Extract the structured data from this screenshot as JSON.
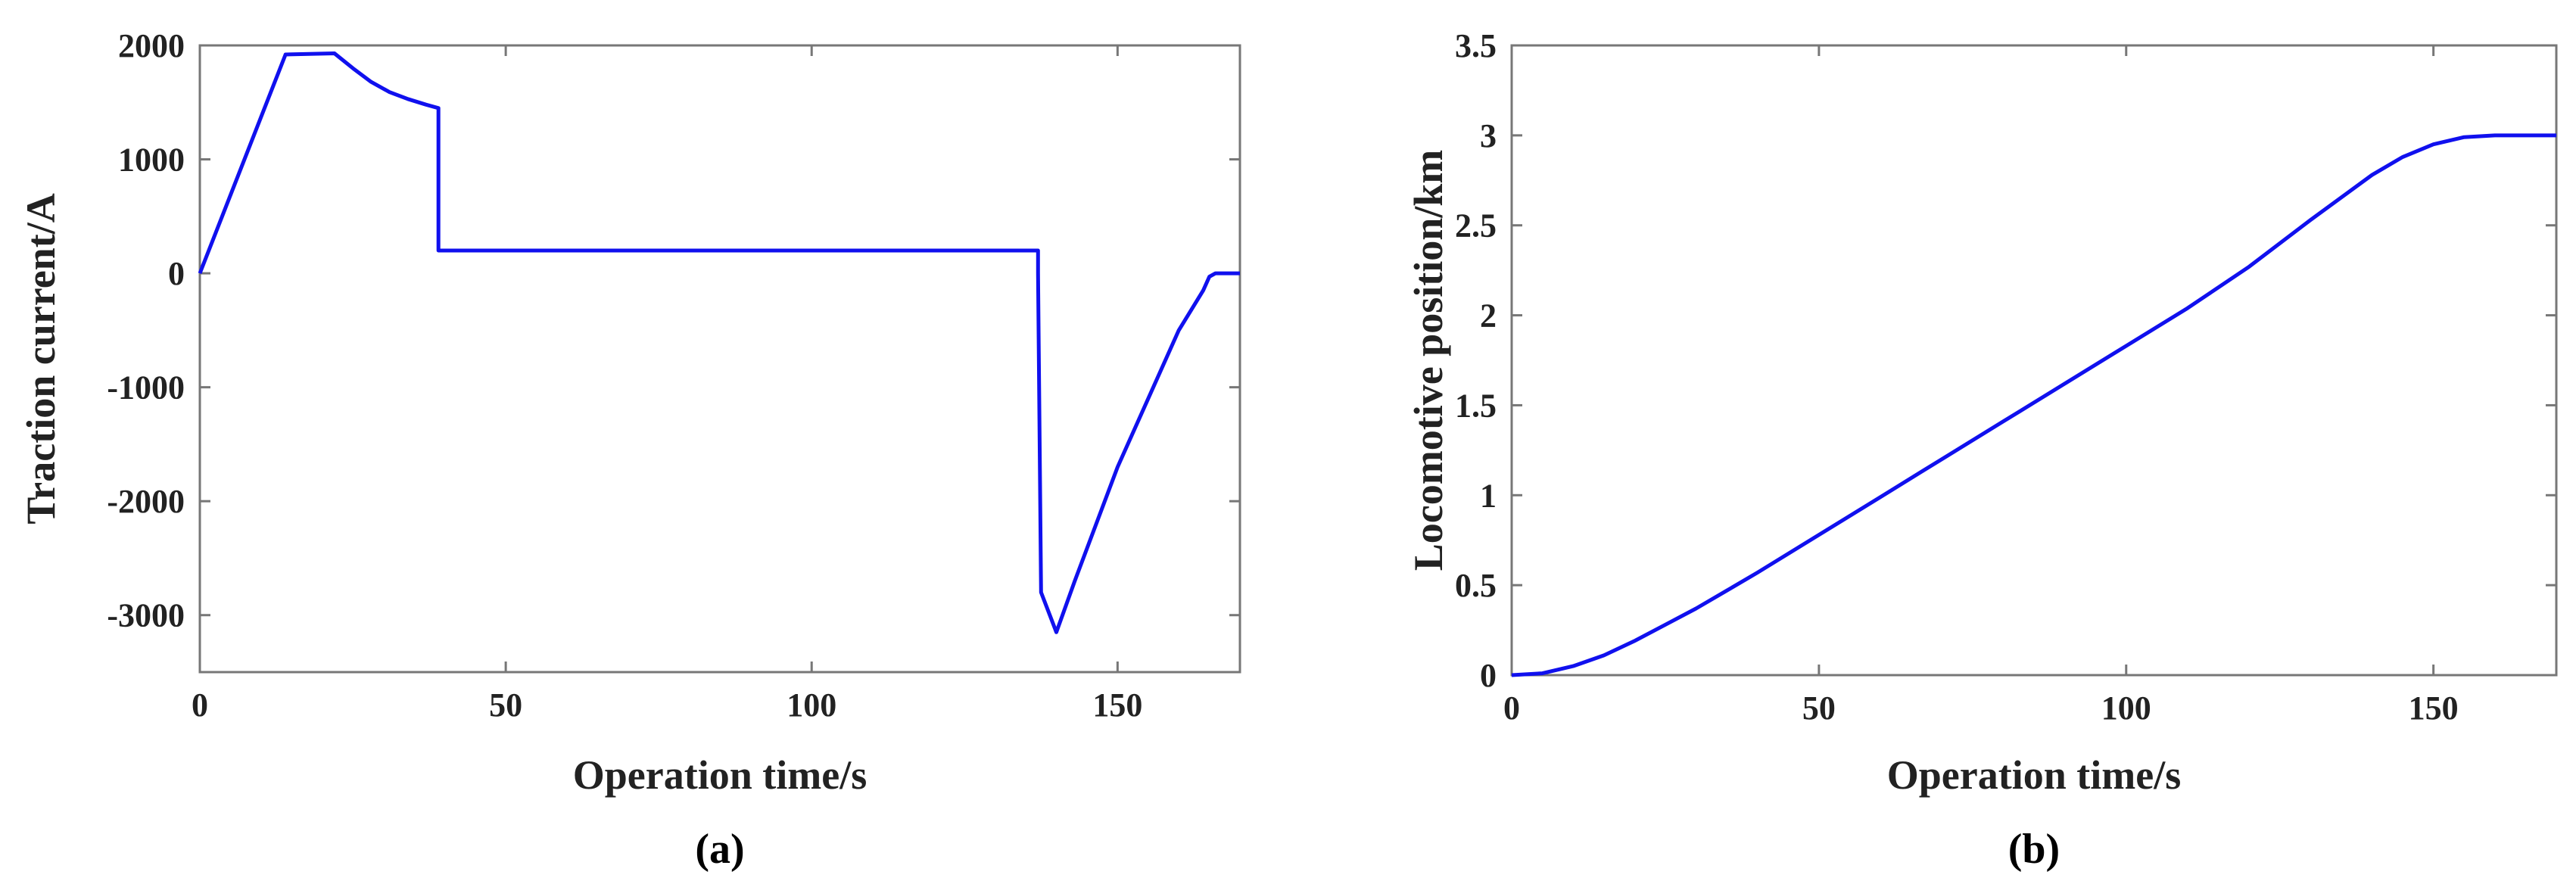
{
  "chart_data": [
    {
      "type": "line",
      "panel_label": "(a)",
      "xlabel": "Operation time/s",
      "ylabel": "Traction current/A",
      "xlim": [
        0,
        170
      ],
      "ylim": [
        -3500,
        2000
      ],
      "xticks": [
        0,
        50,
        100,
        150
      ],
      "yticks": [
        2000,
        1000,
        0,
        -1000,
        -2000,
        -3000
      ],
      "grid": false,
      "color": "#1010ee",
      "series": [
        {
          "x": [
            0,
            14,
            22,
            25,
            28,
            31,
            34,
            37,
            39,
            39,
            39,
            60,
            100,
            137,
            137,
            137.5,
            140,
            143,
            150,
            160,
            164,
            165,
            166,
            170
          ],
          "y": [
            0,
            1920,
            1930,
            1800,
            1680,
            1590,
            1530,
            1480,
            1450,
            1000,
            200,
            200,
            200,
            200,
            0,
            -2800,
            -3150,
            -2700,
            -1700,
            -500,
            -150,
            -30,
            0,
            0
          ]
        }
      ]
    },
    {
      "type": "line",
      "panel_label": "(b)",
      "xlabel": "Operation time/s",
      "ylabel": "Locomotive position/km",
      "xlim": [
        0,
        170
      ],
      "ylim": [
        0,
        3.5
      ],
      "xticks": [
        0,
        50,
        100,
        150
      ],
      "yticks": [
        3.5,
        3,
        2.5,
        2,
        1.5,
        1,
        0.5,
        0
      ],
      "grid": false,
      "color": "#1010ee",
      "series": [
        {
          "x": [
            0,
            5,
            10,
            15,
            20,
            25,
            30,
            35,
            40,
            50,
            60,
            70,
            80,
            90,
            100,
            110,
            120,
            130,
            140,
            145,
            150,
            155,
            160,
            165,
            170
          ],
          "y": [
            0,
            0.01,
            0.05,
            0.11,
            0.19,
            0.28,
            0.37,
            0.47,
            0.57,
            0.78,
            0.99,
            1.2,
            1.41,
            1.62,
            1.83,
            2.04,
            2.27,
            2.53,
            2.78,
            2.88,
            2.95,
            2.99,
            3.0,
            3.0,
            3.0
          ]
        }
      ]
    }
  ]
}
